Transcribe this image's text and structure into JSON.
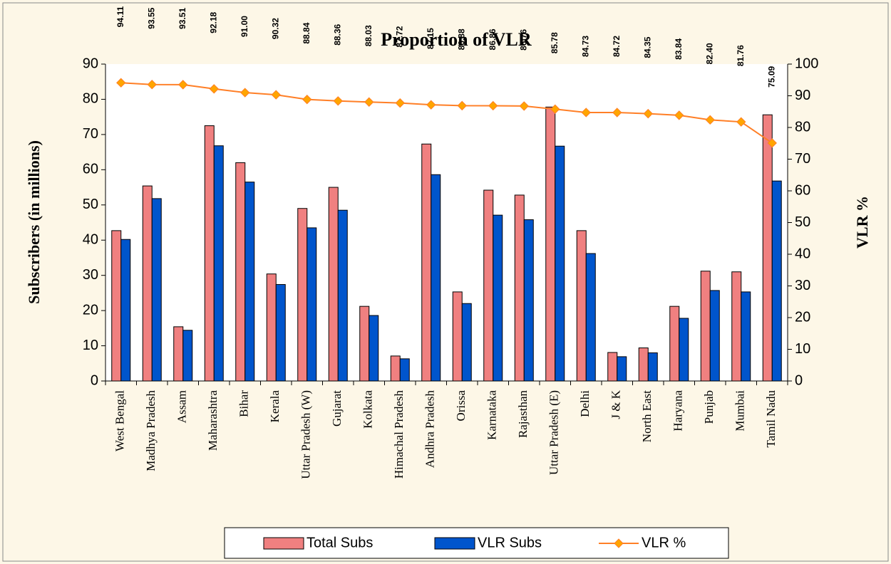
{
  "chart_data": {
    "type": "bar",
    "title": "Proportion of VLR",
    "y_label": "Subscribers (in millions)",
    "y2_label": "VLR %",
    "categories": [
      "West Bengal",
      "Madhya Pradesh",
      "Assam",
      "Maharashtra",
      "Bihar",
      "Kerala",
      "Uttar Pradesh (W)",
      "Gujarat",
      "Kolkata",
      "Himachal Pradesh",
      "Andhra Pradesh",
      "Orissa",
      "Karnataka",
      "Rajasthan",
      "Uttar Pradesh (E)",
      "Delhi",
      "J & K",
      "North East",
      "Haryana",
      "Punjab",
      "Mumbai",
      "Tamil Nadu"
    ],
    "series": [
      {
        "name": "Total Subs",
        "type": "bar",
        "color": "#f08080",
        "values": [
          42.7,
          55.4,
          15.4,
          72.5,
          62,
          30.4,
          49,
          55,
          21.2,
          7.1,
          67.3,
          25.3,
          54.2,
          52.8,
          77.8,
          42.7,
          8.1,
          9.4,
          21.2,
          31.2,
          31,
          75.6
        ]
      },
      {
        "name": "VLR Subs",
        "type": "bar",
        "color": "#0055cc",
        "values": [
          40.2,
          51.8,
          14.4,
          66.8,
          56.5,
          27.4,
          43.5,
          48.5,
          18.6,
          6.3,
          58.6,
          22,
          47.1,
          45.8,
          66.7,
          36.2,
          6.9,
          8,
          17.8,
          25.7,
          25.3,
          56.8
        ]
      },
      {
        "name": "VLR %",
        "type": "line",
        "axis": "y2",
        "color": "#ff7f27",
        "marker_color": "#ffa500",
        "values": [
          94.11,
          93.55,
          93.51,
          92.18,
          91.0,
          90.32,
          88.84,
          88.36,
          88.03,
          87.72,
          87.15,
          86.88,
          86.86,
          86.76,
          85.78,
          84.73,
          84.72,
          84.35,
          83.84,
          82.4,
          81.76,
          75.09
        ],
        "value_labels": [
          "94.11",
          "93.55",
          "93.51",
          "92.18",
          "91.00",
          "90.32",
          "88.84",
          "88.36",
          "88.03",
          "87.72",
          "87.15",
          "86.88",
          "86.86",
          "86.76",
          "85.78",
          "84.73",
          "84.72",
          "84.35",
          "83.84",
          "82.40",
          "81.76",
          "75.09"
        ]
      }
    ],
    "ylim": [
      0,
      90
    ],
    "yticks": [
      0,
      10,
      20,
      30,
      40,
      50,
      60,
      70,
      80,
      90
    ],
    "y2lim": [
      0,
      100
    ],
    "y2ticks": [
      0,
      10,
      20,
      30,
      40,
      50,
      60,
      70,
      80,
      90,
      100
    ],
    "grid": false,
    "legend": "bottom"
  }
}
